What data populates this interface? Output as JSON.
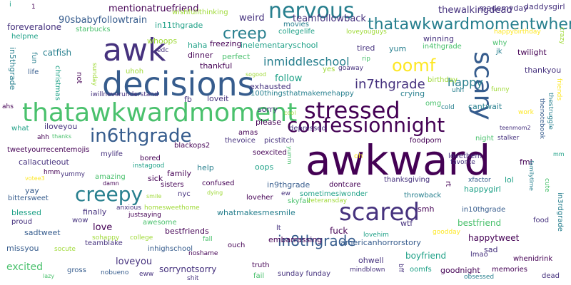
{
  "colors": {
    "background": "#ffffff",
    "palette": [
      "#440154",
      "#46327e",
      "#365c8d",
      "#277f8e",
      "#1fa187",
      "#4ac16d",
      "#a0da39",
      "#fde725"
    ]
  },
  "words": [
    {
      "text": "awkward",
      "color": "#440154"
    },
    {
      "text": "decisions",
      "color": "#365c8d"
    },
    {
      "text": "thatawkwardmoment",
      "color": "#4ac16d"
    },
    {
      "text": "awk",
      "color": "#46327e"
    },
    {
      "text": "scared",
      "color": "#46327e"
    },
    {
      "text": "stressed",
      "color": "#440154"
    },
    {
      "text": "confessionnight",
      "color": "#440154"
    },
    {
      "text": "nervous",
      "color": "#277f8e"
    },
    {
      "text": "scary",
      "color": "#365c8d"
    },
    {
      "text": "creepy",
      "color": "#277f8e"
    },
    {
      "text": "in6thgrade",
      "color": "#365c8d"
    },
    {
      "text": "thatawkwardmomentwhen",
      "color": "#277f8e"
    },
    {
      "text": "creep",
      "color": "#277f8e"
    },
    {
      "text": "oomf",
      "color": "#fde725"
    },
    {
      "text": "in7thgrade",
      "color": "#46327e"
    },
    {
      "text": "in8thgrade",
      "color": "#365c8d"
    },
    {
      "text": "inmiddleschool",
      "color": "#277f8e"
    },
    {
      "text": "happy",
      "color": "#277f8e"
    },
    {
      "text": "mentionatruefriend",
      "color": "#440154"
    },
    {
      "text": "90sbabyfollowtrain",
      "color": "#365c8d"
    },
    {
      "text": "teamfollowback",
      "color": "#46327e"
    },
    {
      "text": "thewalkingdead",
      "color": "#46327e"
    },
    {
      "text": "mademyday",
      "color": "#46327e"
    },
    {
      "text": "daddysgirl",
      "color": "#46327e"
    },
    {
      "text": "foreveralone",
      "color": "#46327e"
    },
    {
      "text": "weird",
      "color": "#46327e"
    },
    {
      "text": "wishfullthinking",
      "color": "#a0da39"
    },
    {
      "text": "helpme",
      "color": "#1fa187"
    },
    {
      "text": "starbucks",
      "color": "#4ac16d"
    },
    {
      "text": "in11thgrade",
      "color": "#1fa187"
    },
    {
      "text": "movies",
      "color": "#277f8e"
    },
    {
      "text": "collegelife",
      "color": "#1fa187"
    },
    {
      "text": "loveyouguys",
      "color": "#a0da39"
    },
    {
      "text": "winning",
      "color": "#46327e"
    },
    {
      "text": "happybirthday",
      "color": "#fde725"
    },
    {
      "text": "whoops",
      "color": "#a0da39"
    },
    {
      "text": "haha",
      "color": "#1fa187"
    },
    {
      "text": "freezing",
      "color": "#440154"
    },
    {
      "text": "inelementaryschool",
      "color": "#1fa187"
    },
    {
      "text": "in4thgrade",
      "color": "#4ac16d"
    },
    {
      "text": "why",
      "color": "#4ac16d"
    },
    {
      "text": "jk",
      "color": "#277f8e"
    },
    {
      "text": "twilight",
      "color": "#440154"
    },
    {
      "text": "edc",
      "color": "#46327e"
    },
    {
      "text": "catfish",
      "color": "#277f8e"
    },
    {
      "text": "dinner",
      "color": "#440154"
    },
    {
      "text": "perfect",
      "color": "#4ac16d"
    },
    {
      "text": "tired",
      "color": "#46327e"
    },
    {
      "text": "yum",
      "color": "#277f8e"
    },
    {
      "text": "rip",
      "color": "#4ac16d"
    },
    {
      "text": "thankful",
      "color": "#440154"
    },
    {
      "text": "goaway",
      "color": "#46327e"
    },
    {
      "text": "yes",
      "color": "#a0da39"
    },
    {
      "text": "life",
      "color": "#365c8d"
    },
    {
      "text": "fun",
      "color": "#277f8e"
    },
    {
      "text": "in5thgrade",
      "color": "#277f8e"
    },
    {
      "text": "christmas",
      "color": "#1fa187"
    },
    {
      "text": "sunday",
      "color": "#a0da39"
    },
    {
      "text": "uhoh",
      "color": "#a0da39"
    },
    {
      "text": "not",
      "color": "#440154"
    },
    {
      "text": "sogood",
      "color": "#a0da39"
    },
    {
      "text": "exhausted",
      "color": "#46327e"
    },
    {
      "text": "100thingsthatmakemehappy",
      "color": "#277f8e"
    },
    {
      "text": "crying",
      "color": "#277f8e"
    },
    {
      "text": "follow",
      "color": "#1fa187"
    },
    {
      "text": "birthday",
      "color": "#a0da39"
    },
    {
      "text": "uhh",
      "color": "#277f8e"
    },
    {
      "text": "funny",
      "color": "#a0da39"
    },
    {
      "text": "thankyou",
      "color": "#46327e"
    },
    {
      "text": "friends",
      "color": "#fde725"
    },
    {
      "text": "crazy",
      "color": "#a0da39"
    },
    {
      "text": "iwillneverunderstand",
      "color": "#46327e"
    },
    {
      "text": "ahs",
      "color": "#440154"
    },
    {
      "text": "fb",
      "color": "#46327e"
    },
    {
      "text": "loveit",
      "color": "#46327e"
    },
    {
      "text": "cantwait",
      "color": "#277f8e"
    },
    {
      "text": "omg",
      "color": "#4ac16d"
    },
    {
      "text": "cold",
      "color": "#277f8e"
    },
    {
      "text": "work",
      "color": "#fde725"
    },
    {
      "text": "thenotebook",
      "color": "#365c8d"
    },
    {
      "text": "thestruggle",
      "color": "#277f8e"
    },
    {
      "text": "sorry",
      "color": "#46327e"
    },
    {
      "text": "cool",
      "color": "#a0da39"
    },
    {
      "text": "iloveyou",
      "color": "#46327e"
    },
    {
      "text": "what",
      "color": "#1fa187"
    },
    {
      "text": "amas",
      "color": "#440154"
    },
    {
      "text": "depressed",
      "color": "#46327e"
    },
    {
      "text": "ahh",
      "color": "#440154"
    },
    {
      "text": "thanks",
      "color": "#4ac16d"
    },
    {
      "text": "night",
      "color": "#4ac16d"
    },
    {
      "text": "teenmom2",
      "color": "#46327e"
    },
    {
      "text": "please",
      "color": "#440154"
    },
    {
      "text": "tweetyourrecentemojis",
      "color": "#440154"
    },
    {
      "text": "thevoice",
      "color": "#46327e"
    },
    {
      "text": "picstitch",
      "color": "#46327e"
    },
    {
      "text": "foodporn",
      "color": "#440154"
    },
    {
      "text": "stalker",
      "color": "#46327e"
    },
    {
      "text": "mylife",
      "color": "#46327e"
    },
    {
      "text": "bored",
      "color": "#440154"
    },
    {
      "text": "blackops2",
      "color": "#440154"
    },
    {
      "text": "soexcited",
      "color": "#440154"
    },
    {
      "text": "yumm",
      "color": "#4ac16d"
    },
    {
      "text": "oh",
      "color": "#fde725"
    },
    {
      "text": "lovethem",
      "color": "#46327e"
    },
    {
      "text": "callacutieout",
      "color": "#46327e"
    },
    {
      "text": "instagood",
      "color": "#1fa187"
    },
    {
      "text": "hmm",
      "color": "#440154"
    },
    {
      "text": "yummy",
      "color": "#46327e"
    },
    {
      "text": "votee3",
      "color": "#fde725"
    },
    {
      "text": "help",
      "color": "#277f8e"
    },
    {
      "text": "oops",
      "color": "#1fa187"
    },
    {
      "text": "favorite",
      "color": "#46327e"
    },
    {
      "text": "fml",
      "color": "#440154"
    },
    {
      "text": "mm",
      "color": "#1fa187"
    },
    {
      "text": "amazing",
      "color": "#4ac16d"
    },
    {
      "text": "sick",
      "color": "#440154"
    },
    {
      "text": "family",
      "color": "#440154"
    },
    {
      "text": "dontcare",
      "color": "#440154"
    },
    {
      "text": "thanksgiving",
      "color": "#46327e"
    },
    {
      "text": "xfactor",
      "color": "#365c8d"
    },
    {
      "text": "lol",
      "color": "#1fa187"
    },
    {
      "text": "damn",
      "color": "#440154"
    },
    {
      "text": "sisters",
      "color": "#440154"
    },
    {
      "text": "in9thgrade",
      "color": "#365c8d"
    },
    {
      "text": "rt",
      "color": "#440154"
    },
    {
      "text": "happygirl",
      "color": "#1fa187"
    },
    {
      "text": "cute",
      "color": "#4ac16d"
    },
    {
      "text": "familytime",
      "color": "#277f8e"
    },
    {
      "text": "yay",
      "color": "#365c8d"
    },
    {
      "text": "confused",
      "color": "#440154"
    },
    {
      "text": "ew",
      "color": "#46327e"
    },
    {
      "text": "sometimesiwonder",
      "color": "#1fa187"
    },
    {
      "text": "in3rdgrade",
      "color": "#277f8e"
    },
    {
      "text": "bittersweet",
      "color": "#365c8d"
    },
    {
      "text": "smile",
      "color": "#a0da39"
    },
    {
      "text": "nyc",
      "color": "#46327e"
    },
    {
      "text": "dying",
      "color": "#a0da39"
    },
    {
      "text": "loveher",
      "color": "#440154"
    },
    {
      "text": "skyfall",
      "color": "#4ac16d"
    },
    {
      "text": "veteransday",
      "color": "#a0da39"
    },
    {
      "text": "throwback",
      "color": "#277f8e"
    },
    {
      "text": "anxious",
      "color": "#46327e"
    },
    {
      "text": "justsaying",
      "color": "#440154"
    },
    {
      "text": "in10thgrade",
      "color": "#365c8d"
    },
    {
      "text": "blessed",
      "color": "#1fa187"
    },
    {
      "text": "finally",
      "color": "#46327e"
    },
    {
      "text": "homesweethome",
      "color": "#a0da39"
    },
    {
      "text": "whatmakesmesmile",
      "color": "#277f8e"
    },
    {
      "text": "smh",
      "color": "#440154"
    },
    {
      "text": "wow",
      "color": "#46327e"
    },
    {
      "text": "proud",
      "color": "#46327e"
    },
    {
      "text": "awesome",
      "color": "#4ac16d"
    },
    {
      "text": "bestfriend",
      "color": "#4ac16d"
    },
    {
      "text": "wtf",
      "color": "#46327e"
    },
    {
      "text": "food",
      "color": "#46327e"
    },
    {
      "text": "sadtweet",
      "color": "#365c8d"
    },
    {
      "text": "love",
      "color": "#440154"
    },
    {
      "text": "lt",
      "color": "#46327e"
    },
    {
      "text": "bestfriends",
      "color": "#440154"
    },
    {
      "text": "fuck",
      "color": "#440154"
    },
    {
      "text": "goodday",
      "color": "#fde725"
    },
    {
      "text": "happytweet",
      "color": "#440154"
    },
    {
      "text": "sohappy",
      "color": "#a0da39"
    },
    {
      "text": "college",
      "color": "#a0da39"
    },
    {
      "text": "lovehim",
      "color": "#1fa187"
    },
    {
      "text": "missyou",
      "color": "#365c8d"
    },
    {
      "text": "teamblake",
      "color": "#46327e"
    },
    {
      "text": "inhighschool",
      "color": "#365c8d"
    },
    {
      "text": "ouch",
      "color": "#440154"
    },
    {
      "text": "embarrassing",
      "color": "#440154"
    },
    {
      "text": "americanhorrorstory",
      "color": "#365c8d"
    },
    {
      "text": "sad",
      "color": "#46327e"
    },
    {
      "text": "socute",
      "color": "#a0da39"
    },
    {
      "text": "noshame",
      "color": "#440154"
    },
    {
      "text": "whenidrink",
      "color": "#440154"
    },
    {
      "text": "loveyou",
      "color": "#46327e"
    },
    {
      "text": "ohwell",
      "color": "#46327e"
    },
    {
      "text": "boyfriend",
      "color": "#1fa187"
    },
    {
      "text": "lmao",
      "color": "#46327e"
    },
    {
      "text": "excited",
      "color": "#4ac16d"
    },
    {
      "text": "truth",
      "color": "#440154"
    },
    {
      "text": "sunday funday",
      "color": "#46327e"
    },
    {
      "text": "goodnight",
      "color": "#440154"
    },
    {
      "text": "memories",
      "color": "#440154"
    },
    {
      "text": "gross",
      "color": "#365c8d"
    },
    {
      "text": "sorrynotsorry",
      "color": "#46327e"
    },
    {
      "text": "mindblown",
      "color": "#46327e"
    },
    {
      "text": "bff",
      "color": "#46327e"
    },
    {
      "text": "oomfs",
      "color": "#1fa187"
    },
    {
      "text": "nobueno",
      "color": "#365c8d"
    },
    {
      "text": "eww",
      "color": "#46327e"
    },
    {
      "text": "fail",
      "color": "#4ac16d"
    },
    {
      "text": "obsessed",
      "color": "#277f8e"
    },
    {
      "text": "dead",
      "color": "#46327e"
    },
    {
      "text": "lazy",
      "color": "#4ac16d"
    },
    {
      "text": "shit",
      "color": "#46327e"
    },
    {
      "text": "i",
      "color": "#1fa187"
    },
    {
      "text": "1",
      "color": "#440154"
    },
    {
      "text": "fall",
      "color": "#4ac16d"
    }
  ]
}
